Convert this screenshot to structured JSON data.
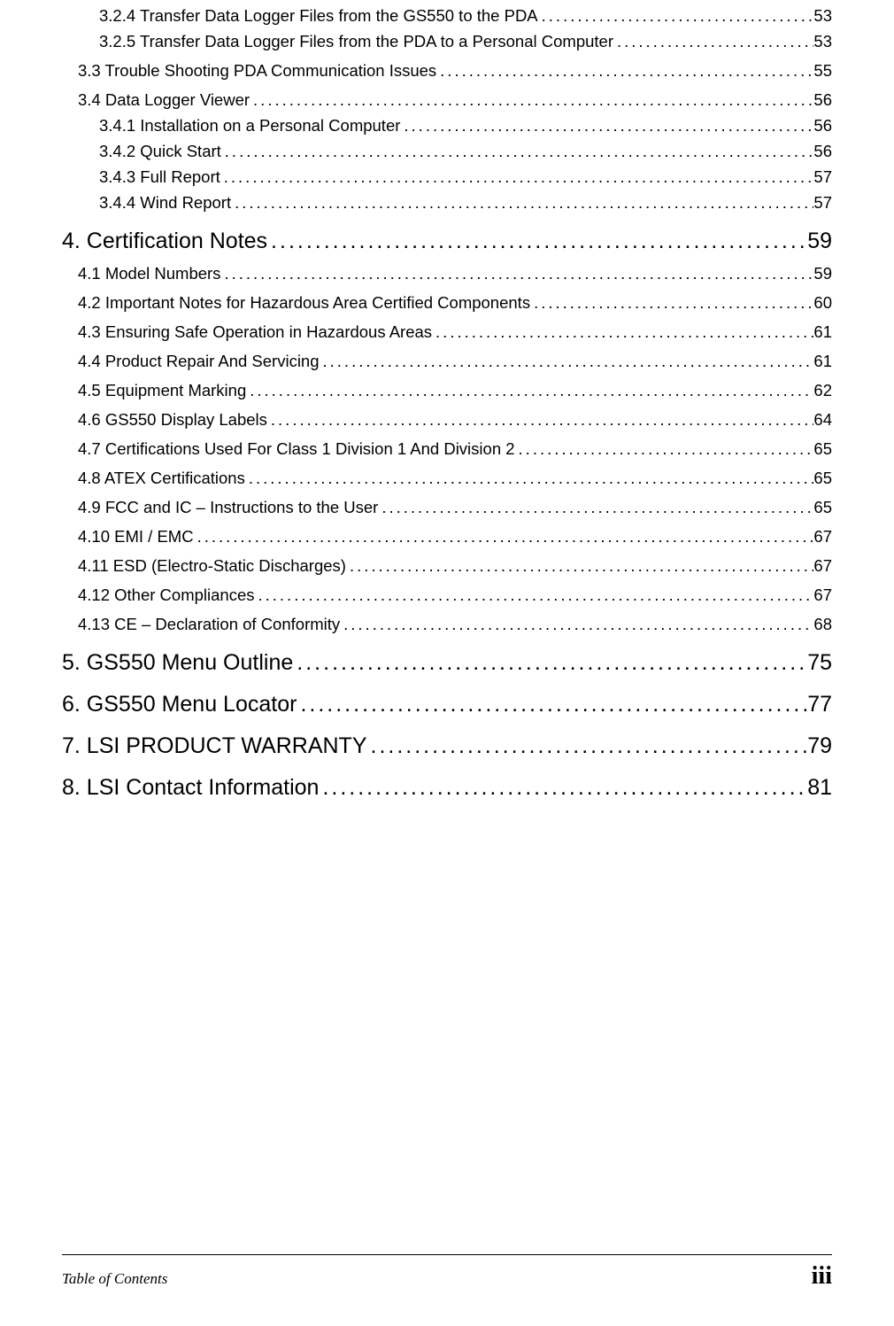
{
  "toc": [
    {
      "level": 3,
      "title": "3.2.4 Transfer Data Logger Files from the GS550 to the PDA",
      "page": "53"
    },
    {
      "level": 3,
      "title": "3.2.5 Transfer Data Logger Files from the PDA to a Personal Computer",
      "page": "53"
    },
    {
      "level": 2,
      "title": "3.3 Trouble Shooting PDA Communication Issues",
      "page": "55"
    },
    {
      "level": 2,
      "title": "3.4 Data Logger Viewer",
      "page": "56"
    },
    {
      "level": 3,
      "title": "3.4.1 Installation on a Personal Computer",
      "page": "56"
    },
    {
      "level": 3,
      "title": "3.4.2 Quick Start",
      "page": "56"
    },
    {
      "level": 3,
      "title": "3.4.3 Full Report",
      "page": "57"
    },
    {
      "level": 3,
      "title": "3.4.4 Wind Report",
      "page": "57"
    },
    {
      "level": 1,
      "title": "4. Certification Notes",
      "page": "59"
    },
    {
      "level": 2,
      "title": "4.1 Model Numbers",
      "page": "59"
    },
    {
      "level": 2,
      "title": "4.2 Important Notes for Hazardous Area Certified Components",
      "page": "60"
    },
    {
      "level": 2,
      "title": "4.3 Ensuring Safe Operation in Hazardous Areas",
      "page": "61"
    },
    {
      "level": 2,
      "title": "4.4 Product Repair And Servicing",
      "page": "61"
    },
    {
      "level": 2,
      "title": "4.5 Equipment Marking",
      "page": "62"
    },
    {
      "level": 2,
      "title": "4.6 GS550 Display Labels",
      "page": "64"
    },
    {
      "level": 2,
      "title": "4.7 Certifications Used For Class 1 Division 1 And Division 2",
      "page": "65"
    },
    {
      "level": 2,
      "title": "4.8 ATEX Certifications",
      "page": "65"
    },
    {
      "level": 2,
      "title": "4.9 FCC and IC – Instructions to the User",
      "page": "65"
    },
    {
      "level": 2,
      "title": "4.10 EMI / EMC",
      "page": "67"
    },
    {
      "level": 2,
      "title": "4.11 ESD (Electro-Static Discharges)",
      "page": "67"
    },
    {
      "level": 2,
      "title": "4.12 Other Compliances",
      "page": "67"
    },
    {
      "level": 2,
      "title": "4.13 CE – Declaration of Conformity",
      "page": "68"
    },
    {
      "level": 1,
      "title": "5. GS550 Menu Outline",
      "page": "75"
    },
    {
      "level": 1,
      "title": "6. GS550 Menu Locator",
      "page": "77"
    },
    {
      "level": 1,
      "title": "7. LSI PRODUCT WARRANTY",
      "page": "79"
    },
    {
      "level": 1,
      "title": "8. LSI Contact Information",
      "page": "81"
    }
  ],
  "footer": {
    "left": "Table of Contents",
    "right": "iii"
  }
}
